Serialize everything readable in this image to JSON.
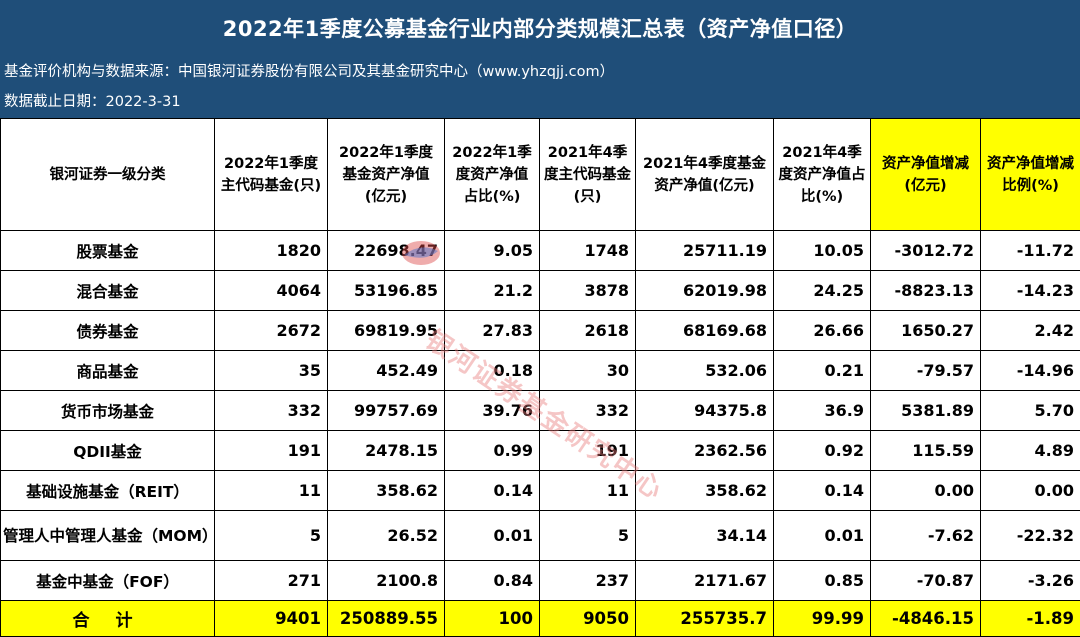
{
  "header": {
    "title": "2022年1季度公募基金行业内部分类规模汇总表（资产净值口径）",
    "source": "基金评价机构与数据来源：中国银河证券股份有限公司及其基金研究中心（www.yhzqjj.com）",
    "cutoff": "数据截止日期：2022-3-31"
  },
  "table": {
    "columns": [
      "银河证券一级分类",
      "2022年1季度主代码基金(只)",
      "2022年1季度基金资产净值(亿元)",
      "2022年1季度资产净值占比(%)",
      "2021年4季度主代码基金(只)",
      "2021年4季度基金资产净值(亿元)",
      "2021年4季度资产净值占比(%)",
      "资产净值增减(亿元)",
      "资产净值增减比例(%)"
    ],
    "rows": [
      [
        "股票基金",
        "1820",
        "22698.47",
        "9.05",
        "1748",
        "25711.19",
        "10.05",
        "-3012.72",
        "-11.72"
      ],
      [
        "混合基金",
        "4064",
        "53196.85",
        "21.2",
        "3878",
        "62019.98",
        "24.25",
        "-8823.13",
        "-14.23"
      ],
      [
        "债券基金",
        "2672",
        "69819.95",
        "27.83",
        "2618",
        "68169.68",
        "26.66",
        "1650.27",
        "2.42"
      ],
      [
        "商品基金",
        "35",
        "452.49",
        "0.18",
        "30",
        "532.06",
        "0.21",
        "-79.57",
        "-14.96"
      ],
      [
        "货币市场基金",
        "332",
        "99757.69",
        "39.76",
        "332",
        "94375.8",
        "36.9",
        "5381.89",
        "5.70"
      ],
      [
        "QDII基金",
        "191",
        "2478.15",
        "0.99",
        "191",
        "2362.56",
        "0.92",
        "115.59",
        "4.89"
      ],
      [
        "基础设施基金（REIT）",
        "11",
        "358.62",
        "0.14",
        "11",
        "358.62",
        "0.14",
        "0.00",
        "0.00"
      ],
      [
        "管理人中管理人基金（MOM）",
        "5",
        "26.52",
        "0.01",
        "5",
        "34.14",
        "0.01",
        "-7.62",
        "-22.32"
      ],
      [
        "基金中基金（FOF）",
        "271",
        "2100.8",
        "0.84",
        "237",
        "2171.67",
        "0.85",
        "-70.87",
        "-3.26"
      ]
    ],
    "total": [
      "合 计",
      "9401",
      "250889.55",
      "100",
      "9050",
      "255735.7",
      "99.99",
      "-4846.15",
      "-1.89"
    ]
  },
  "watermark": "银河证券基金研究中心",
  "colors": {
    "header_bg": "#1f4e79",
    "highlight": "#ffff00",
    "watermark": "#e67878"
  }
}
